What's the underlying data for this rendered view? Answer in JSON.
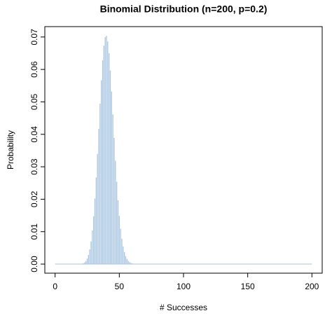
{
  "chart_data": {
    "type": "histogram-lines",
    "title": "Binomial Distribution (n=200, p=0.2)",
    "x_label": "# Successes",
    "y_label": "Probability",
    "color": "#a9c6e2",
    "x": [
      0,
      1,
      2,
      3,
      4,
      5,
      6,
      7,
      8,
      9,
      10,
      11,
      12,
      13,
      14,
      15,
      16,
      17,
      18,
      19,
      20,
      21,
      22,
      23,
      24,
      25,
      26,
      27,
      28,
      29,
      30,
      31,
      32,
      33,
      34,
      35,
      36,
      37,
      38,
      39,
      40,
      41,
      42,
      43,
      44,
      45,
      46,
      47,
      48,
      49,
      50,
      51,
      52,
      53,
      54,
      55,
      56,
      57,
      58,
      59,
      60,
      61,
      62,
      63,
      64,
      65,
      66,
      67,
      68,
      69,
      70,
      71,
      72,
      73,
      74,
      75,
      76,
      77,
      78,
      79,
      80,
      81,
      82,
      83,
      84,
      85,
      86,
      87,
      88,
      89,
      90,
      91,
      92,
      93,
      94,
      95,
      96,
      97,
      98,
      99,
      100,
      101,
      102,
      103,
      104,
      105,
      106,
      107,
      108,
      109,
      110,
      111,
      112,
      113,
      114,
      115,
      116,
      117,
      118,
      119,
      120,
      121,
      122,
      123,
      124,
      125,
      126,
      127,
      128,
      129,
      130,
      131,
      132,
      133,
      134,
      135,
      136,
      137,
      138,
      139,
      140,
      141,
      142,
      143,
      144,
      145,
      146,
      147,
      148,
      149,
      150,
      151,
      152,
      153,
      154,
      155,
      156,
      157,
      158,
      159,
      160,
      161,
      162,
      163,
      164,
      165,
      166,
      167,
      168,
      169,
      170,
      171,
      172,
      173,
      174,
      175,
      176,
      177,
      178,
      179,
      180,
      181,
      182,
      183,
      184,
      185,
      186,
      187,
      188,
      189,
      190,
      191,
      192,
      193,
      194,
      195,
      196,
      197,
      198,
      199,
      200
    ],
    "values": [
      0,
      0,
      0,
      0,
      0,
      0,
      0,
      0,
      0,
      0,
      0,
      0,
      0,
      0,
      0,
      0,
      0,
      0,
      1e-05,
      3e-05,
      6e-05,
      0.00013,
      0.00027,
      0.00051,
      0.00095,
      0.00167,
      0.00281,
      0.00452,
      0.00698,
      0.01035,
      0.01475,
      0.02022,
      0.02669,
      0.03397,
      0.04171,
      0.04946,
      0.05667,
      0.0628,
      0.06734,
      0.06993,
      0.07037,
      0.06865,
      0.06497,
      0.05968,
      0.05324,
      0.04614,
      0.03887,
      0.03184,
      0.02537,
      0.01968,
      0.01486,
      0.01092,
      0.00782,
      0.00546,
      0.00372,
      0.00247,
      0.0016,
      0.00101,
      0.00062,
      0.00037,
      0.00022,
      0.00013,
      7e-05,
      4e-05,
      2e-05,
      1e-05,
      0,
      0,
      0,
      0,
      0,
      0,
      0,
      0,
      0,
      0,
      0,
      0,
      0,
      0,
      0,
      0,
      0,
      0,
      0,
      0,
      0,
      0,
      0,
      0,
      0,
      0,
      0,
      0,
      0,
      0,
      0,
      0,
      0,
      0,
      0,
      0,
      0,
      0,
      0,
      0,
      0,
      0,
      0,
      0,
      0,
      0,
      0,
      0,
      0,
      0,
      0,
      0,
      0,
      0,
      0,
      0,
      0,
      0,
      0,
      0,
      0,
      0,
      0,
      0,
      0,
      0,
      0,
      0,
      0,
      0,
      0,
      0,
      0,
      0,
      0,
      0,
      0,
      0,
      0,
      0,
      0,
      0,
      0,
      0,
      0,
      0,
      0,
      0,
      0,
      0,
      0,
      0,
      0,
      0,
      0,
      0,
      0,
      0,
      0,
      0,
      0,
      0,
      0,
      0,
      0,
      0,
      0,
      0,
      0,
      0,
      0,
      0,
      0,
      0,
      0,
      0,
      0,
      0,
      0,
      0,
      0,
      0,
      0,
      0,
      0,
      0,
      0,
      0,
      0,
      0,
      0,
      0,
      0,
      0,
      0
    ],
    "xlim": [
      -8,
      208
    ],
    "ylim": [
      -0.0028,
      0.0732
    ],
    "xticks": [
      0,
      50,
      100,
      150,
      200
    ],
    "yticks": [
      {
        "value": 0,
        "label": "0.00"
      },
      {
        "value": 0.01,
        "label": "0.01"
      },
      {
        "value": 0.02,
        "label": "0.02"
      },
      {
        "value": 0.03,
        "label": "0.03"
      },
      {
        "value": 0.04,
        "label": "0.04"
      },
      {
        "value": 0.05,
        "label": "0.05"
      },
      {
        "value": 0.06,
        "label": "0.06"
      },
      {
        "value": 0.07,
        "label": "0.07"
      }
    ]
  }
}
